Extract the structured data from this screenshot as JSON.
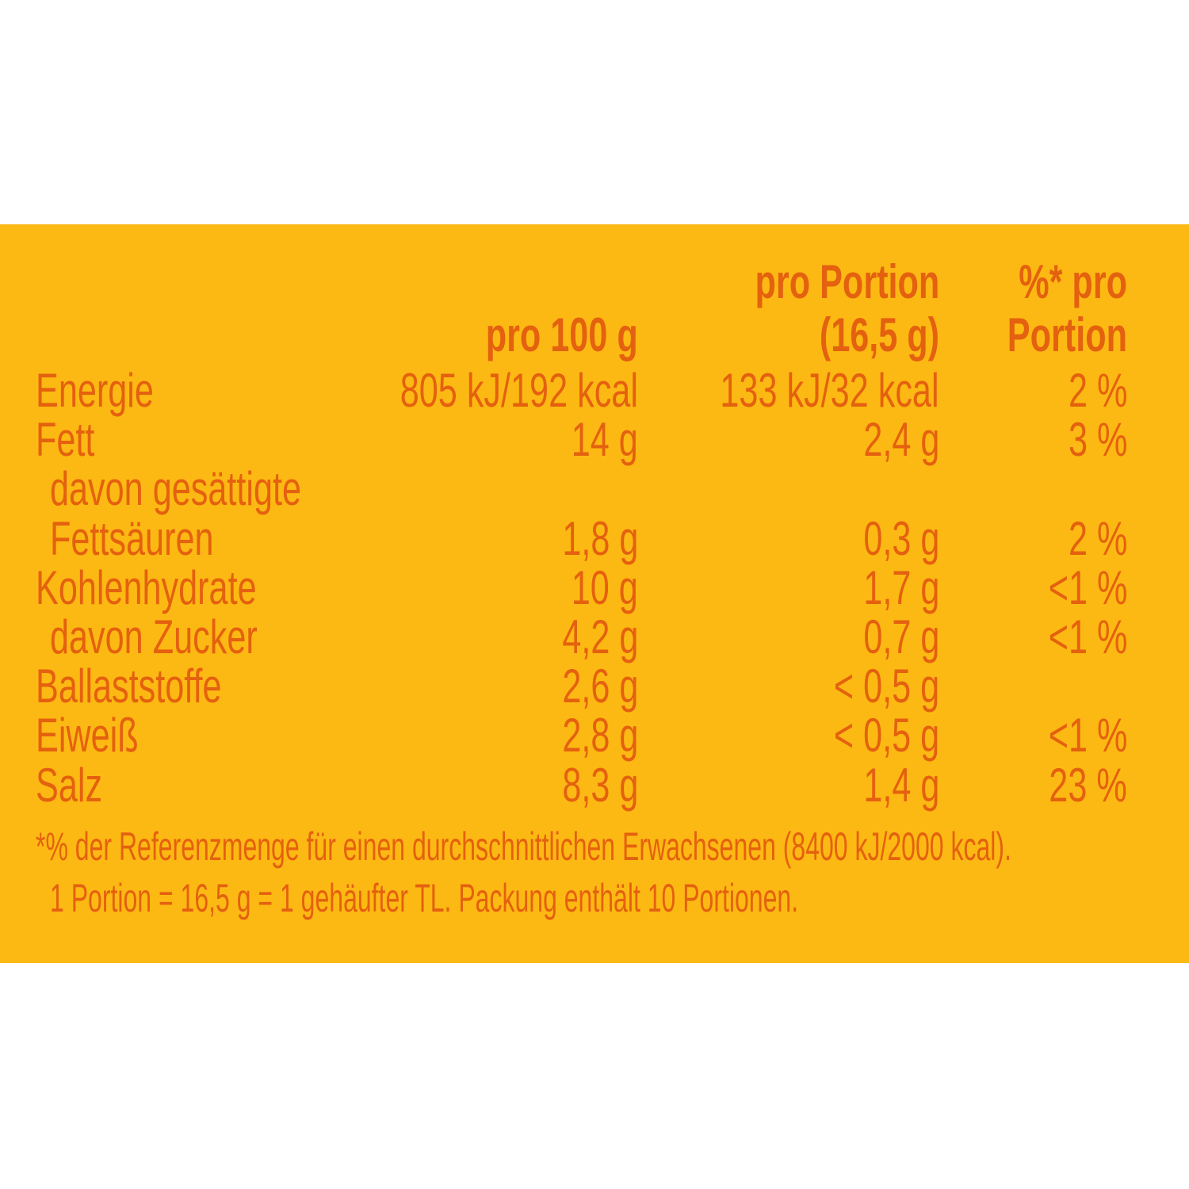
{
  "colors": {
    "background": "#FDB913",
    "text": "#E4610F"
  },
  "header": {
    "col1": "pro 100 g",
    "col2_line1": "pro Portion",
    "col2_line2": "(16,5 g)",
    "col3_line1": "%* pro",
    "col3_line2": "Portion"
  },
  "rows": [
    {
      "label": "Energie",
      "per100": "805 kJ/192 kcal",
      "perPortion": "133 kJ/32 kcal",
      "percent": "2 %"
    },
    {
      "label": "Fett",
      "per100": "14 g",
      "perPortion": "2,4 g",
      "percent": "3 %"
    },
    {
      "label": "davon gesättigte",
      "per100": "",
      "perPortion": "",
      "percent": ""
    },
    {
      "label": "Fettsäuren",
      "per100": "1,8 g",
      "perPortion": "0,3 g",
      "percent": "2 %"
    },
    {
      "label": "Kohlenhydrate",
      "per100": "10 g",
      "perPortion": "1,7 g",
      "percent": "<1 %"
    },
    {
      "label": "davon Zucker",
      "per100": "4,2 g",
      "perPortion": "0,7 g",
      "percent": "<1 %"
    },
    {
      "label": "Ballaststoffe",
      "per100": "2,6 g",
      "perPortion": "< 0,5 g",
      "percent": ""
    },
    {
      "label": "Eiweiß",
      "per100": "2,8 g",
      "perPortion": "< 0,5 g",
      "percent": "<1 %"
    },
    {
      "label": "Salz",
      "per100": "8,3 g",
      "perPortion": "1,4 g",
      "percent": "23 %"
    }
  ],
  "footnote": {
    "line1": "*% der Referenzmenge für einen durchschnittlichen Erwachsenen (8400 kJ/2000 kcal).",
    "line2": "1 Portion = 16,5 g = 1 gehäufter TL. Packung enthält 10 Portionen."
  }
}
